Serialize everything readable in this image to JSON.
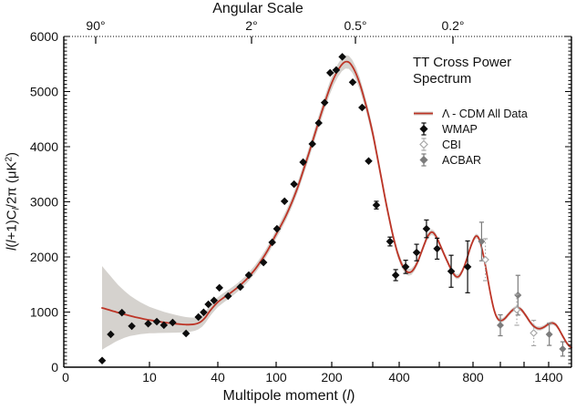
{
  "figure": {
    "title_top": "Angular Scale",
    "xlabel": "Multipole moment (l)",
    "xlabel_parts": [
      {
        "t": "Multipole moment ("
      },
      {
        "t": "l",
        "i": true
      },
      {
        "t": ")"
      }
    ],
    "ylabel": "l(l+1)Cl/2π (μK²)",
    "ylabel_parts": [
      {
        "t": "l",
        "i": true
      },
      {
        "t": "("
      },
      {
        "t": "l",
        "i": true
      },
      {
        "t": "+1)C"
      },
      {
        "t": "l",
        "i": true,
        "sub": true
      },
      {
        "t": "/2π (μK"
      },
      {
        "t": "2",
        "sup": true
      },
      {
        "t": ")"
      }
    ],
    "legend": {
      "title": "TT Cross Power Spectrum",
      "entries": [
        {
          "label": "Λ - CDM All Data",
          "marker": "lcdm-line"
        },
        {
          "label": "WMAP",
          "marker": "wmap-diamond"
        },
        {
          "label": "CBI",
          "marker": "cbi-diamond"
        },
        {
          "label": "ACBAR",
          "marker": "acbar-diamond"
        }
      ]
    },
    "colors": {
      "model": "#bd3426",
      "band": "#d5d2ce",
      "wmap": "#0d0d0d",
      "cbi": "#a8a8a8",
      "acbar": "#7c7c7c",
      "axis": "#000000"
    }
  },
  "chart_data": {
    "type": "line",
    "title": "TT Cross Power Spectrum",
    "xlabel": "Multipole moment (l)",
    "ylabel": "l(l+1)Cl/2π (μK²)",
    "x_axis": {
      "range": [
        0,
        1600
      ],
      "scale": "custom nonlinear (compressed toward high l)",
      "labels": [
        [
          0,
          "0"
        ],
        [
          10,
          "10"
        ],
        [
          40,
          "40"
        ],
        [
          100,
          "100"
        ],
        [
          200,
          "200"
        ],
        [
          400,
          "400"
        ],
        [
          800,
          "800"
        ],
        [
          1400,
          "1400"
        ]
      ],
      "tick_marks": [
        10,
        40,
        100,
        200,
        300,
        400,
        600,
        800,
        1000,
        1200,
        1400
      ]
    },
    "y_axis": {
      "range": [
        0,
        6000
      ],
      "ticks": [
        0,
        1000,
        2000,
        3000,
        4000,
        5000,
        6000
      ],
      "minor_step": 66.67
    },
    "top_axis": {
      "label": "Angular Scale",
      "ticks": [
        "90°",
        "2°",
        "0.5°",
        "0.2°"
      ]
    },
    "series": [
      {
        "name": "Λ - CDM All Data",
        "type": "line",
        "role": "model",
        "color_key": "model",
        "points": [
          [
            2,
            1075
          ],
          [
            2.5,
            1052
          ],
          [
            3,
            1030
          ],
          [
            3.5,
            1010
          ],
          [
            4,
            990
          ],
          [
            5,
            958
          ],
          [
            6,
            932
          ],
          [
            7,
            908
          ],
          [
            8,
            888
          ],
          [
            9,
            870
          ],
          [
            10,
            855
          ],
          [
            11,
            841
          ],
          [
            12,
            828
          ],
          [
            13.5,
            812
          ],
          [
            15,
            800
          ],
          [
            17,
            787
          ],
          [
            19,
            778
          ],
          [
            21,
            772
          ],
          [
            23,
            773
          ],
          [
            25,
            780
          ],
          [
            27,
            800
          ],
          [
            29,
            840
          ],
          [
            31,
            900
          ],
          [
            33,
            980
          ],
          [
            35,
            1050
          ],
          [
            37.5,
            1120
          ],
          [
            40,
            1180
          ],
          [
            43,
            1245
          ],
          [
            46,
            1300
          ],
          [
            49,
            1350
          ],
          [
            53,
            1420
          ],
          [
            57,
            1490
          ],
          [
            62,
            1580
          ],
          [
            67,
            1680
          ],
          [
            72,
            1780
          ],
          [
            78,
            1910
          ],
          [
            84,
            2040
          ],
          [
            91,
            2200
          ],
          [
            98,
            2370
          ],
          [
            105,
            2540
          ],
          [
            113,
            2750
          ],
          [
            122,
            3000
          ],
          [
            131,
            3270
          ],
          [
            141,
            3590
          ],
          [
            151,
            3900
          ],
          [
            161,
            4200
          ],
          [
            172,
            4510
          ],
          [
            183,
            4790
          ],
          [
            194,
            5040
          ],
          [
            204,
            5240
          ],
          [
            213,
            5390
          ],
          [
            221,
            5490
          ],
          [
            229,
            5540
          ],
          [
            237,
            5530
          ],
          [
            245,
            5460
          ],
          [
            254,
            5330
          ],
          [
            264,
            5140
          ],
          [
            275,
            4890
          ],
          [
            287,
            4590
          ],
          [
            300,
            4240
          ],
          [
            314,
            3850
          ],
          [
            329,
            3440
          ],
          [
            345,
            3020
          ],
          [
            361,
            2650
          ],
          [
            377,
            2330
          ],
          [
            393,
            2070
          ],
          [
            409,
            1880
          ],
          [
            424,
            1770
          ],
          [
            438,
            1720
          ],
          [
            452,
            1730
          ],
          [
            467,
            1800
          ],
          [
            483,
            1920
          ],
          [
            500,
            2080
          ],
          [
            516,
            2230
          ],
          [
            530,
            2350
          ],
          [
            543,
            2420
          ],
          [
            555,
            2450
          ],
          [
            568,
            2430
          ],
          [
            583,
            2360
          ],
          [
            600,
            2250
          ],
          [
            620,
            2090
          ],
          [
            641,
            1930
          ],
          [
            661,
            1790
          ],
          [
            679,
            1690
          ],
          [
            695,
            1640
          ],
          [
            710,
            1650
          ],
          [
            726,
            1720
          ],
          [
            744,
            1840
          ],
          [
            762,
            1990
          ],
          [
            780,
            2150
          ],
          [
            796,
            2270
          ],
          [
            810,
            2350
          ],
          [
            822,
            2380
          ],
          [
            834,
            2360
          ],
          [
            847,
            2280
          ],
          [
            861,
            2140
          ],
          [
            877,
            1950
          ],
          [
            894,
            1720
          ],
          [
            912,
            1470
          ],
          [
            931,
            1230
          ],
          [
            950,
            1040
          ],
          [
            968,
            920
          ],
          [
            986,
            860
          ],
          [
            1004,
            845
          ],
          [
            1022,
            860
          ],
          [
            1042,
            900
          ],
          [
            1065,
            960
          ],
          [
            1090,
            1020
          ],
          [
            1115,
            1060
          ],
          [
            1140,
            1075
          ],
          [
            1165,
            1060
          ],
          [
            1190,
            1010
          ],
          [
            1218,
            920
          ],
          [
            1246,
            820
          ],
          [
            1274,
            745
          ],
          [
            1302,
            705
          ],
          [
            1330,
            700
          ],
          [
            1358,
            725
          ],
          [
            1386,
            765
          ],
          [
            1412,
            795
          ],
          [
            1436,
            800
          ],
          [
            1460,
            770
          ],
          [
            1484,
            700
          ],
          [
            1508,
            610
          ],
          [
            1532,
            520
          ],
          [
            1556,
            440
          ],
          [
            1580,
            385
          ],
          [
            1600,
            355
          ]
        ]
      },
      {
        "name": "cosmic variance band",
        "type": "band",
        "role": "band",
        "color_key": "band",
        "widths": [
          [
            2,
            760
          ],
          [
            3,
            620
          ],
          [
            4,
            505
          ],
          [
            5,
            425
          ],
          [
            6,
            365
          ],
          [
            8,
            290
          ],
          [
            10,
            240
          ],
          [
            13,
            195
          ],
          [
            16,
            168
          ],
          [
            20,
            142
          ],
          [
            25,
            120
          ],
          [
            30,
            105
          ],
          [
            40,
            90
          ],
          [
            55,
            78
          ],
          [
            75,
            74
          ],
          [
            100,
            80
          ],
          [
            130,
            93
          ],
          [
            160,
            105
          ],
          [
            190,
            115
          ],
          [
            225,
            122
          ],
          [
            260,
            114
          ],
          [
            300,
            100
          ],
          [
            350,
            84
          ],
          [
            410,
            66
          ],
          [
            470,
            56
          ],
          [
            545,
            52
          ],
          [
            650,
            46
          ],
          [
            800,
            44
          ],
          [
            1000,
            40
          ],
          [
            1200,
            38
          ],
          [
            1400,
            36
          ],
          [
            1600,
            34
          ]
        ]
      },
      {
        "name": "WMAP",
        "type": "scatter",
        "role": "wmap",
        "color_key": "wmap",
        "marker": "filled-diamond",
        "bar_style": "solid",
        "points": [
          [
            2,
            120,
            0
          ],
          [
            3,
            595,
            0
          ],
          [
            4.6,
            990,
            0
          ],
          [
            6.3,
            745,
            0
          ],
          [
            9.7,
            790,
            0
          ],
          [
            11.6,
            826,
            0
          ],
          [
            13.4,
            762,
            0
          ],
          [
            16,
            810,
            0
          ],
          [
            21,
            612,
            0
          ],
          [
            27,
            910,
            0
          ],
          [
            30,
            995,
            0
          ],
          [
            33,
            1140,
            0
          ],
          [
            37,
            1210,
            0
          ],
          [
            41,
            1440,
            0
          ],
          [
            47,
            1290,
            0
          ],
          [
            57,
            1455,
            0
          ],
          [
            65,
            1670,
            0
          ],
          [
            82,
            1900,
            0
          ],
          [
            94,
            2265,
            0
          ],
          [
            101,
            2510,
            0
          ],
          [
            111,
            3010,
            0
          ],
          [
            125,
            3320,
            0
          ],
          [
            140,
            3720,
            0
          ],
          [
            157,
            4050,
            0
          ],
          [
            170,
            4430,
            0
          ],
          [
            183,
            4800,
            0
          ],
          [
            196,
            5340,
            0
          ],
          [
            209,
            5390,
            0
          ],
          [
            222,
            5630,
            0
          ],
          [
            246,
            5170,
            0
          ],
          [
            270,
            4710,
            0
          ],
          [
            288,
            3740,
            0
          ],
          [
            312,
            2940,
            70
          ],
          [
            362,
            2280,
            80
          ],
          [
            385,
            1670,
            100
          ],
          [
            427,
            1820,
            120
          ],
          [
            477,
            2080,
            150
          ],
          [
            527,
            2510,
            160
          ],
          [
            587,
            2150,
            190
          ],
          [
            664,
            1740,
            290
          ],
          [
            764,
            1820,
            470
          ]
        ]
      },
      {
        "name": "CBI",
        "type": "scatter",
        "role": "cbi",
        "color_key": "cbi",
        "marker": "open-diamond",
        "bar_style": "dotted",
        "points": [
          [
            885,
            1950,
            380
          ],
          [
            1135,
            1041,
            280
          ],
          [
            1275,
            620,
            230
          ]
        ]
      },
      {
        "name": "ACBAR",
        "type": "scatter",
        "role": "acbar",
        "color_key": "acbar",
        "marker": "filled-diamond",
        "bar_style": "solid",
        "points": [
          [
            858,
            2280,
            350
          ],
          [
            1000,
            760,
            190
          ],
          [
            1145,
            1306,
            360
          ],
          [
            1405,
            595,
            200
          ],
          [
            1520,
            331,
            130
          ]
        ]
      }
    ]
  }
}
